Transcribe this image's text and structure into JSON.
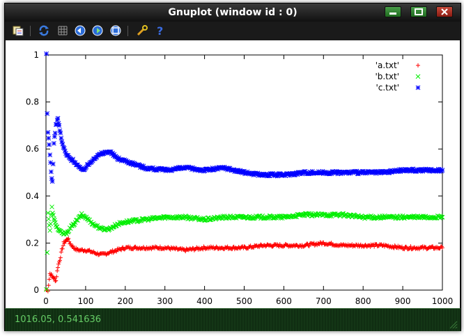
{
  "window": {
    "title": "Gnuplot (window id : 0)"
  },
  "toolbar": {
    "icons": [
      "copy-to-clipboard-icon",
      "replot-icon",
      "grid-icon",
      "zoom-previous-icon",
      "zoom-next-icon",
      "unzoom-icon",
      "options-icon",
      "help-icon"
    ]
  },
  "status": {
    "text": "1016.05,  0.541636"
  },
  "colors": {
    "series_a": "#ff0000",
    "series_b": "#00ee00",
    "series_c": "#0000ff"
  },
  "chart_data": {
    "type": "scatter",
    "title": "",
    "xlabel": "",
    "ylabel": "",
    "xlim": [
      0,
      1000
    ],
    "ylim": [
      0,
      1
    ],
    "xticks": [
      "0",
      "100",
      "200",
      "300",
      "400",
      "500",
      "600",
      "700",
      "800",
      "900",
      "1000"
    ],
    "yticks": [
      "0",
      "0.2",
      "0.4",
      "0.6",
      "0.8",
      "1"
    ],
    "legend_position": "top-right",
    "grid": false,
    "series": [
      {
        "name": "'a.txt'",
        "marker": "+",
        "points": [
          [
            1,
            0
          ],
          [
            5,
            0
          ],
          [
            10,
            0.07
          ],
          [
            15,
            0.06
          ],
          [
            20,
            0.05
          ],
          [
            25,
            0.04
          ],
          [
            30,
            0.1
          ],
          [
            35,
            0.13
          ],
          [
            40,
            0.17
          ],
          [
            45,
            0.2
          ],
          [
            50,
            0.21
          ],
          [
            55,
            0.22
          ],
          [
            60,
            0.2
          ],
          [
            70,
            0.18
          ],
          [
            80,
            0.17
          ],
          [
            100,
            0.17
          ],
          [
            120,
            0.16
          ],
          [
            140,
            0.15
          ],
          [
            160,
            0.16
          ],
          [
            180,
            0.17
          ],
          [
            200,
            0.18
          ],
          [
            250,
            0.18
          ],
          [
            300,
            0.18
          ],
          [
            350,
            0.17
          ],
          [
            400,
            0.18
          ],
          [
            450,
            0.18
          ],
          [
            500,
            0.18
          ],
          [
            550,
            0.19
          ],
          [
            600,
            0.19
          ],
          [
            650,
            0.19
          ],
          [
            700,
            0.2
          ],
          [
            750,
            0.19
          ],
          [
            800,
            0.19
          ],
          [
            850,
            0.19
          ],
          [
            900,
            0.18
          ],
          [
            950,
            0.18
          ],
          [
            1000,
            0.18
          ]
        ]
      },
      {
        "name": "'b.txt'",
        "marker": "x",
        "points": [
          [
            1,
            0
          ],
          [
            5,
            0.33
          ],
          [
            10,
            0.25
          ],
          [
            15,
            0.35
          ],
          [
            20,
            0.3
          ],
          [
            25,
            0.28
          ],
          [
            30,
            0.26
          ],
          [
            40,
            0.24
          ],
          [
            50,
            0.24
          ],
          [
            60,
            0.26
          ],
          [
            70,
            0.28
          ],
          [
            80,
            0.3
          ],
          [
            90,
            0.32
          ],
          [
            100,
            0.31
          ],
          [
            120,
            0.28
          ],
          [
            140,
            0.26
          ],
          [
            160,
            0.26
          ],
          [
            180,
            0.28
          ],
          [
            200,
            0.29
          ],
          [
            250,
            0.3
          ],
          [
            300,
            0.31
          ],
          [
            350,
            0.31
          ],
          [
            400,
            0.3
          ],
          [
            450,
            0.31
          ],
          [
            500,
            0.31
          ],
          [
            550,
            0.31
          ],
          [
            600,
            0.31
          ],
          [
            650,
            0.32
          ],
          [
            700,
            0.32
          ],
          [
            750,
            0.32
          ],
          [
            800,
            0.31
          ],
          [
            850,
            0.31
          ],
          [
            900,
            0.31
          ],
          [
            950,
            0.31
          ],
          [
            1000,
            0.31
          ]
        ]
      },
      {
        "name": "'c.txt'",
        "marker": "*",
        "points": [
          [
            1,
            1
          ],
          [
            3,
            0.75
          ],
          [
            5,
            0.67
          ],
          [
            8,
            0.62
          ],
          [
            10,
            0.58
          ],
          [
            13,
            0.5
          ],
          [
            16,
            0.46
          ],
          [
            20,
            0.62
          ],
          [
            25,
            0.7
          ],
          [
            30,
            0.73
          ],
          [
            35,
            0.68
          ],
          [
            40,
            0.63
          ],
          [
            50,
            0.58
          ],
          [
            60,
            0.56
          ],
          [
            70,
            0.55
          ],
          [
            80,
            0.53
          ],
          [
            90,
            0.51
          ],
          [
            100,
            0.52
          ],
          [
            120,
            0.56
          ],
          [
            140,
            0.58
          ],
          [
            160,
            0.59
          ],
          [
            180,
            0.56
          ],
          [
            200,
            0.55
          ],
          [
            250,
            0.52
          ],
          [
            300,
            0.51
          ],
          [
            350,
            0.52
          ],
          [
            400,
            0.51
          ],
          [
            450,
            0.52
          ],
          [
            500,
            0.5
          ],
          [
            550,
            0.49
          ],
          [
            600,
            0.49
          ],
          [
            650,
            0.5
          ],
          [
            700,
            0.5
          ],
          [
            750,
            0.5
          ],
          [
            800,
            0.5
          ],
          [
            850,
            0.5
          ],
          [
            900,
            0.51
          ],
          [
            950,
            0.51
          ],
          [
            1000,
            0.51
          ]
        ]
      }
    ]
  }
}
